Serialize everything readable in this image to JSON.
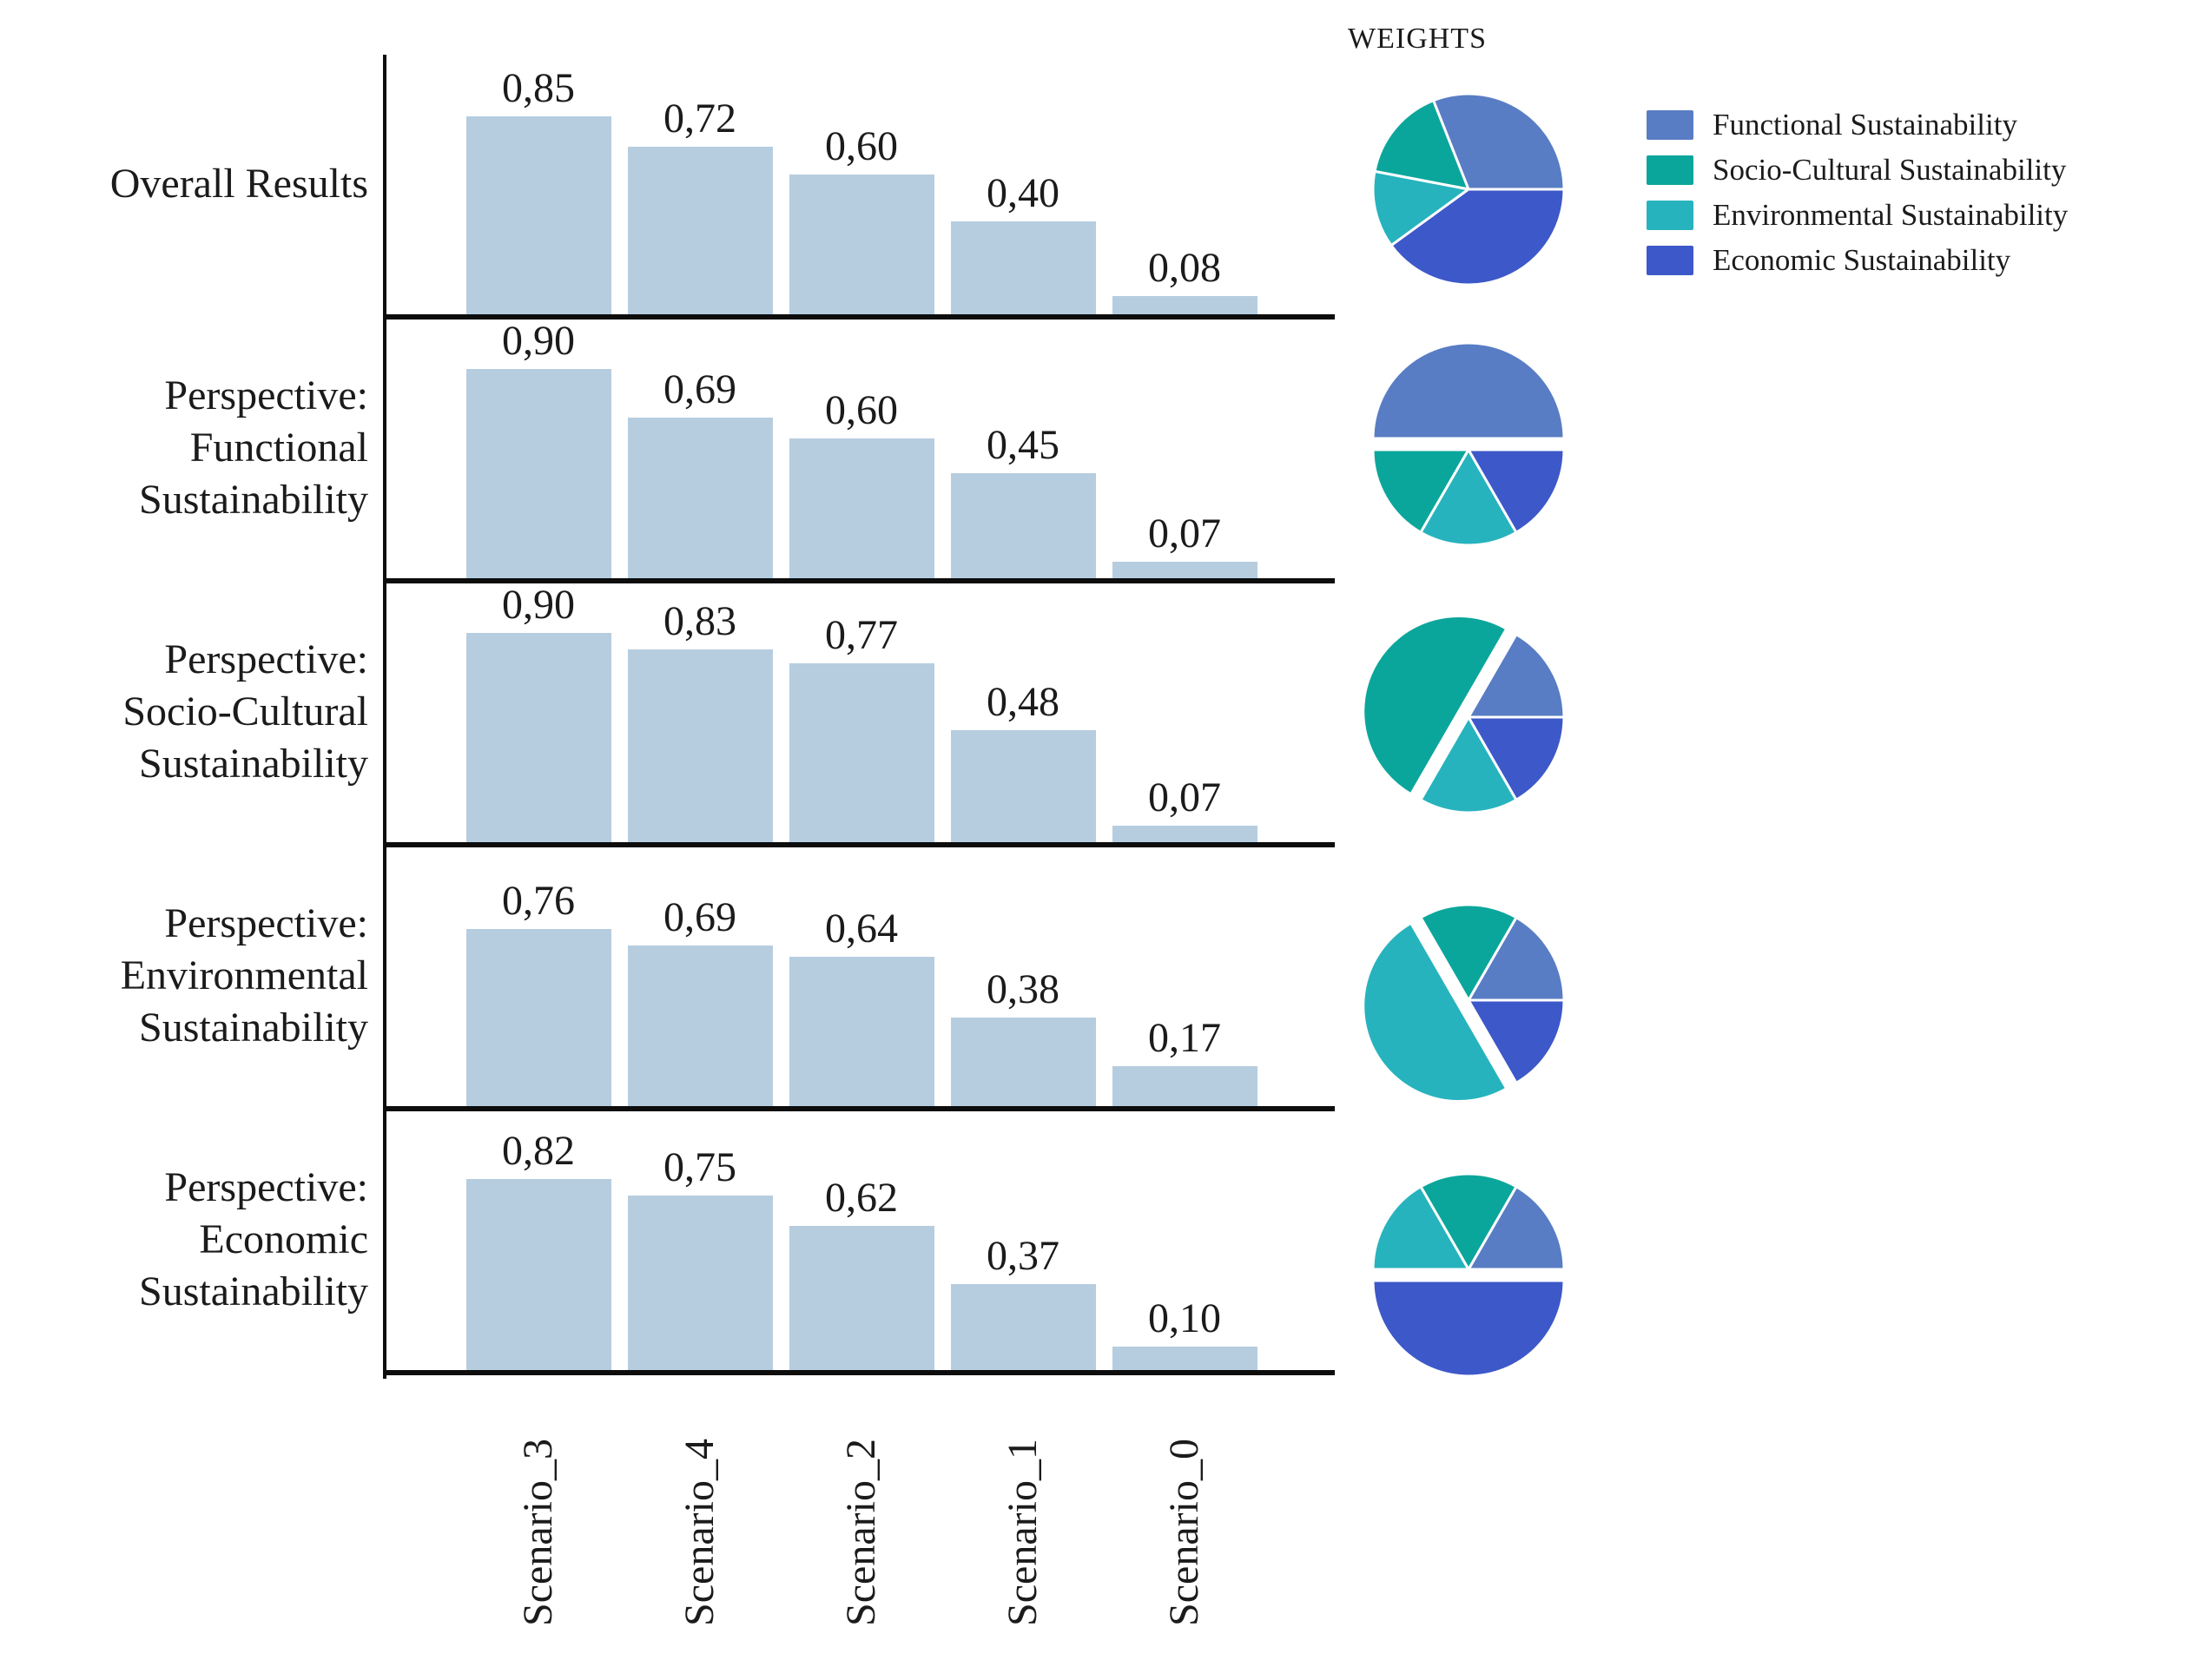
{
  "weights_title": "WEIGHTS",
  "colors": {
    "functional": "#597dc4",
    "socio_cultural": "#0ba69b",
    "environmental": "#27b3bd",
    "economic": "#3d58c8",
    "bar_fill": "#b6cde0",
    "axis_line": "#0d0d0d",
    "text": "#1b1b1b"
  },
  "legend": [
    {
      "key": "functional",
      "label": "Functional Sustainability"
    },
    {
      "key": "socio_cultural",
      "label": "Socio-Cultural Sustainability"
    },
    {
      "key": "environmental",
      "label": "Environmental Sustainability"
    },
    {
      "key": "economic",
      "label": "Economic Sustainability"
    }
  ],
  "chart_data": {
    "type": "bar",
    "decimal_style": "comma",
    "grid": false,
    "legend_position": "top-right",
    "categories": [
      "Scenario_3",
      "Scenario_4",
      "Scenario_2",
      "Scenario_1",
      "Scenario_0"
    ],
    "ylim": [
      0,
      1.0
    ],
    "pie_slice_order": [
      "functional",
      "socio_cultural",
      "environmental",
      "economic"
    ],
    "panels": [
      {
        "label_lines": [
          "Overall Results"
        ],
        "values": [
          0.85,
          0.72,
          0.6,
          0.4,
          0.08
        ],
        "value_labels": [
          "0,85",
          "0,72",
          "0,60",
          "0,40",
          "0,08"
        ],
        "pie_weights": {
          "functional": 0.31,
          "socio_cultural": 0.16,
          "environmental": 0.13,
          "economic": 0.4
        },
        "pie_exploded_slice": null
      },
      {
        "label_lines": [
          "Perspective:",
          "Functional",
          "Sustainability"
        ],
        "values": [
          0.9,
          0.69,
          0.6,
          0.45,
          0.07
        ],
        "value_labels": [
          "0,90",
          "0,69",
          "0,60",
          "0,45",
          "0,07"
        ],
        "pie_weights": {
          "functional": 0.5,
          "socio_cultural": 0.1667,
          "environmental": 0.1667,
          "economic": 0.1667
        },
        "pie_exploded_slice": "functional"
      },
      {
        "label_lines": [
          "Perspective:",
          "Socio-Cultural",
          "Sustainability"
        ],
        "values": [
          0.9,
          0.83,
          0.77,
          0.48,
          0.07
        ],
        "value_labels": [
          "0,90",
          "0,83",
          "0,77",
          "0,48",
          "0,07"
        ],
        "pie_weights": {
          "functional": 0.1667,
          "socio_cultural": 0.5,
          "environmental": 0.1667,
          "economic": 0.1667
        },
        "pie_exploded_slice": "socio_cultural"
      },
      {
        "label_lines": [
          "Perspective:",
          "Environmental",
          "Sustainability"
        ],
        "values": [
          0.76,
          0.69,
          0.64,
          0.38,
          0.17
        ],
        "value_labels": [
          "0,76",
          "0,69",
          "0,64",
          "0,38",
          "0,17"
        ],
        "pie_weights": {
          "functional": 0.1667,
          "socio_cultural": 0.1667,
          "environmental": 0.5,
          "economic": 0.1667
        },
        "pie_exploded_slice": "environmental"
      },
      {
        "label_lines": [
          "Perspective:",
          "Economic",
          "Sustainability"
        ],
        "values": [
          0.82,
          0.75,
          0.62,
          0.37,
          0.1
        ],
        "value_labels": [
          "0,82",
          "0,75",
          "0,62",
          "0,37",
          "0,10"
        ],
        "pie_weights": {
          "functional": 0.1667,
          "socio_cultural": 0.1667,
          "environmental": 0.1667,
          "economic": 0.5
        },
        "pie_exploded_slice": "economic"
      }
    ]
  }
}
